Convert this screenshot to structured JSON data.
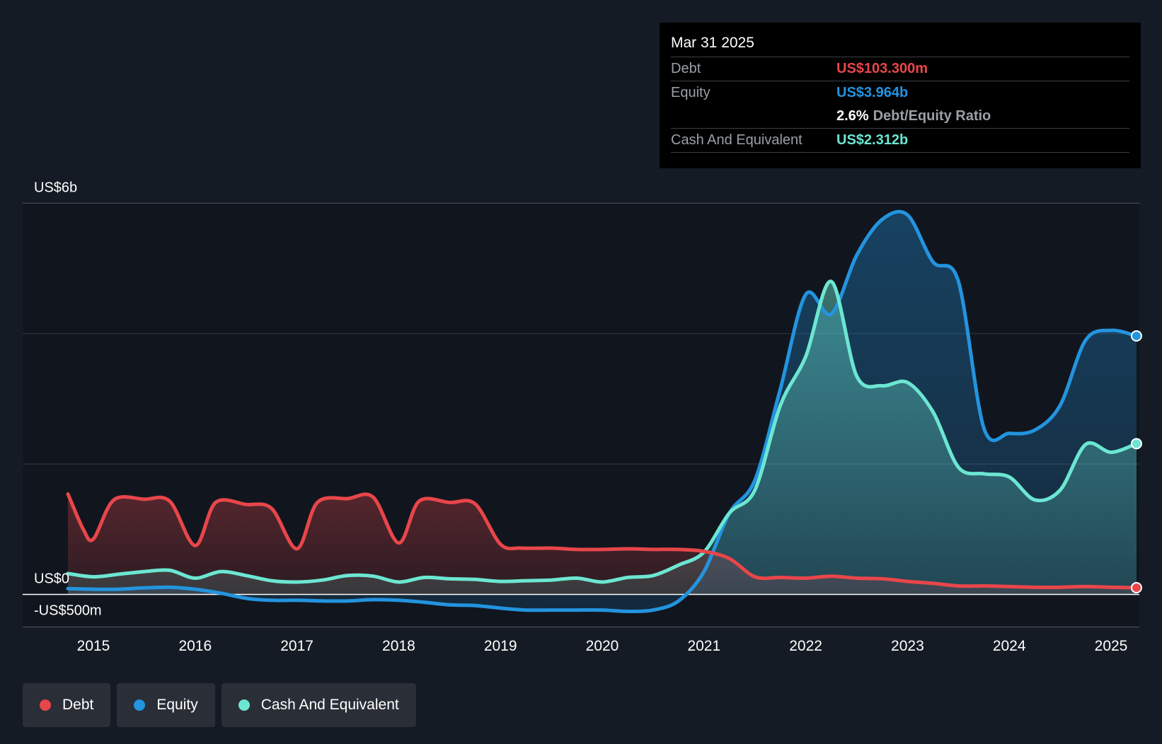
{
  "tooltip": {
    "date": "Mar 31 2025",
    "debt_label": "Debt",
    "debt_value": "US$103.300m",
    "equity_label": "Equity",
    "equity_value": "US$3.964b",
    "ratio_value": "2.6%",
    "ratio_label": "Debt/Equity Ratio",
    "cash_label": "Cash And Equivalent",
    "cash_value": "US$2.312b"
  },
  "legend": {
    "debt": "Debt",
    "equity": "Equity",
    "cash": "Cash And Equivalent"
  },
  "colors": {
    "debt": "#e8464a",
    "equity": "#2394df",
    "cash": "#6ce6d2",
    "background": "#151b24",
    "tooltip_bg": "#000000"
  },
  "chart_data": {
    "type": "area",
    "title": "",
    "xlabel": "",
    "ylabel": "",
    "ylim": [
      -0.5,
      6
    ],
    "y_ticks": [
      {
        "value": 6,
        "label": "US$6b"
      },
      {
        "value": 0,
        "label": "US$0"
      },
      {
        "value": -0.5,
        "label": "-US$500m"
      }
    ],
    "x_ticks": [
      "2015",
      "2016",
      "2017",
      "2018",
      "2019",
      "2020",
      "2021",
      "2022",
      "2023",
      "2024",
      "2025"
    ],
    "unit": "US$ billions",
    "grid": true,
    "legend_position": "bottom-left",
    "series": [
      {
        "name": "Debt",
        "points": [
          [
            2014.75,
            1.54
          ],
          [
            2014.9,
            1.0
          ],
          [
            2015.0,
            0.85
          ],
          [
            2015.2,
            1.45
          ],
          [
            2015.5,
            1.46
          ],
          [
            2015.75,
            1.43
          ],
          [
            2016.0,
            0.75
          ],
          [
            2016.2,
            1.41
          ],
          [
            2016.5,
            1.38
          ],
          [
            2016.75,
            1.32
          ],
          [
            2017.0,
            0.7
          ],
          [
            2017.2,
            1.41
          ],
          [
            2017.5,
            1.47
          ],
          [
            2017.75,
            1.49
          ],
          [
            2018.0,
            0.79
          ],
          [
            2018.2,
            1.43
          ],
          [
            2018.5,
            1.41
          ],
          [
            2018.75,
            1.39
          ],
          [
            2019.0,
            0.77
          ],
          [
            2019.2,
            0.71
          ],
          [
            2019.5,
            0.71
          ],
          [
            2019.75,
            0.69
          ],
          [
            2020.0,
            0.69
          ],
          [
            2020.25,
            0.7
          ],
          [
            2020.5,
            0.69
          ],
          [
            2020.75,
            0.69
          ],
          [
            2021.0,
            0.66
          ],
          [
            2021.25,
            0.55
          ],
          [
            2021.5,
            0.27
          ],
          [
            2021.75,
            0.26
          ],
          [
            2022.0,
            0.25
          ],
          [
            2022.25,
            0.28
          ],
          [
            2022.5,
            0.25
          ],
          [
            2022.75,
            0.24
          ],
          [
            2023.0,
            0.2
          ],
          [
            2023.25,
            0.17
          ],
          [
            2023.5,
            0.13
          ],
          [
            2023.75,
            0.13
          ],
          [
            2024.0,
            0.12
          ],
          [
            2024.25,
            0.11
          ],
          [
            2024.5,
            0.11
          ],
          [
            2024.75,
            0.12
          ],
          [
            2025.0,
            0.11
          ],
          [
            2025.25,
            0.1033
          ]
        ]
      },
      {
        "name": "Equity",
        "points": [
          [
            2014.75,
            0.09
          ],
          [
            2015.0,
            0.08
          ],
          [
            2015.25,
            0.08
          ],
          [
            2015.5,
            0.1
          ],
          [
            2015.75,
            0.11
          ],
          [
            2016.0,
            0.08
          ],
          [
            2016.25,
            0.02
          ],
          [
            2016.5,
            -0.06
          ],
          [
            2016.75,
            -0.09
          ],
          [
            2017.0,
            -0.09
          ],
          [
            2017.25,
            -0.1
          ],
          [
            2017.5,
            -0.1
          ],
          [
            2017.75,
            -0.08
          ],
          [
            2018.0,
            -0.09
          ],
          [
            2018.25,
            -0.12
          ],
          [
            2018.5,
            -0.16
          ],
          [
            2018.75,
            -0.17
          ],
          [
            2019.0,
            -0.21
          ],
          [
            2019.25,
            -0.24
          ],
          [
            2019.5,
            -0.24
          ],
          [
            2019.75,
            -0.24
          ],
          [
            2020.0,
            -0.24
          ],
          [
            2020.25,
            -0.26
          ],
          [
            2020.5,
            -0.24
          ],
          [
            2020.75,
            -0.1
          ],
          [
            2021.0,
            0.35
          ],
          [
            2021.25,
            1.25
          ],
          [
            2021.5,
            1.75
          ],
          [
            2021.75,
            3.15
          ],
          [
            2022.0,
            4.6
          ],
          [
            2022.25,
            4.3
          ],
          [
            2022.5,
            5.2
          ],
          [
            2022.75,
            5.75
          ],
          [
            2023.0,
            5.82
          ],
          [
            2023.25,
            5.1
          ],
          [
            2023.5,
            4.8
          ],
          [
            2023.75,
            2.55
          ],
          [
            2024.0,
            2.47
          ],
          [
            2024.25,
            2.52
          ],
          [
            2024.5,
            2.9
          ],
          [
            2024.75,
            3.9
          ],
          [
            2025.0,
            4.05
          ],
          [
            2025.25,
            3.964
          ]
        ]
      },
      {
        "name": "Cash And Equivalent",
        "points": [
          [
            2014.75,
            0.32
          ],
          [
            2015.0,
            0.27
          ],
          [
            2015.25,
            0.31
          ],
          [
            2015.5,
            0.35
          ],
          [
            2015.75,
            0.37
          ],
          [
            2016.0,
            0.25
          ],
          [
            2016.25,
            0.35
          ],
          [
            2016.5,
            0.29
          ],
          [
            2016.75,
            0.21
          ],
          [
            2017.0,
            0.19
          ],
          [
            2017.25,
            0.22
          ],
          [
            2017.5,
            0.29
          ],
          [
            2017.75,
            0.28
          ],
          [
            2018.0,
            0.19
          ],
          [
            2018.25,
            0.26
          ],
          [
            2018.5,
            0.24
          ],
          [
            2018.75,
            0.23
          ],
          [
            2019.0,
            0.2
          ],
          [
            2019.25,
            0.21
          ],
          [
            2019.5,
            0.22
          ],
          [
            2019.75,
            0.25
          ],
          [
            2020.0,
            0.19
          ],
          [
            2020.25,
            0.26
          ],
          [
            2020.5,
            0.29
          ],
          [
            2020.75,
            0.45
          ],
          [
            2021.0,
            0.65
          ],
          [
            2021.25,
            1.25
          ],
          [
            2021.5,
            1.6
          ],
          [
            2021.75,
            2.9
          ],
          [
            2022.0,
            3.65
          ],
          [
            2022.25,
            4.8
          ],
          [
            2022.5,
            3.35
          ],
          [
            2022.75,
            3.2
          ],
          [
            2023.0,
            3.25
          ],
          [
            2023.25,
            2.8
          ],
          [
            2023.5,
            1.95
          ],
          [
            2023.75,
            1.85
          ],
          [
            2024.0,
            1.8
          ],
          [
            2024.25,
            1.45
          ],
          [
            2024.5,
            1.6
          ],
          [
            2024.75,
            2.3
          ],
          [
            2025.0,
            2.18
          ],
          [
            2025.25,
            2.312
          ]
        ]
      }
    ]
  }
}
